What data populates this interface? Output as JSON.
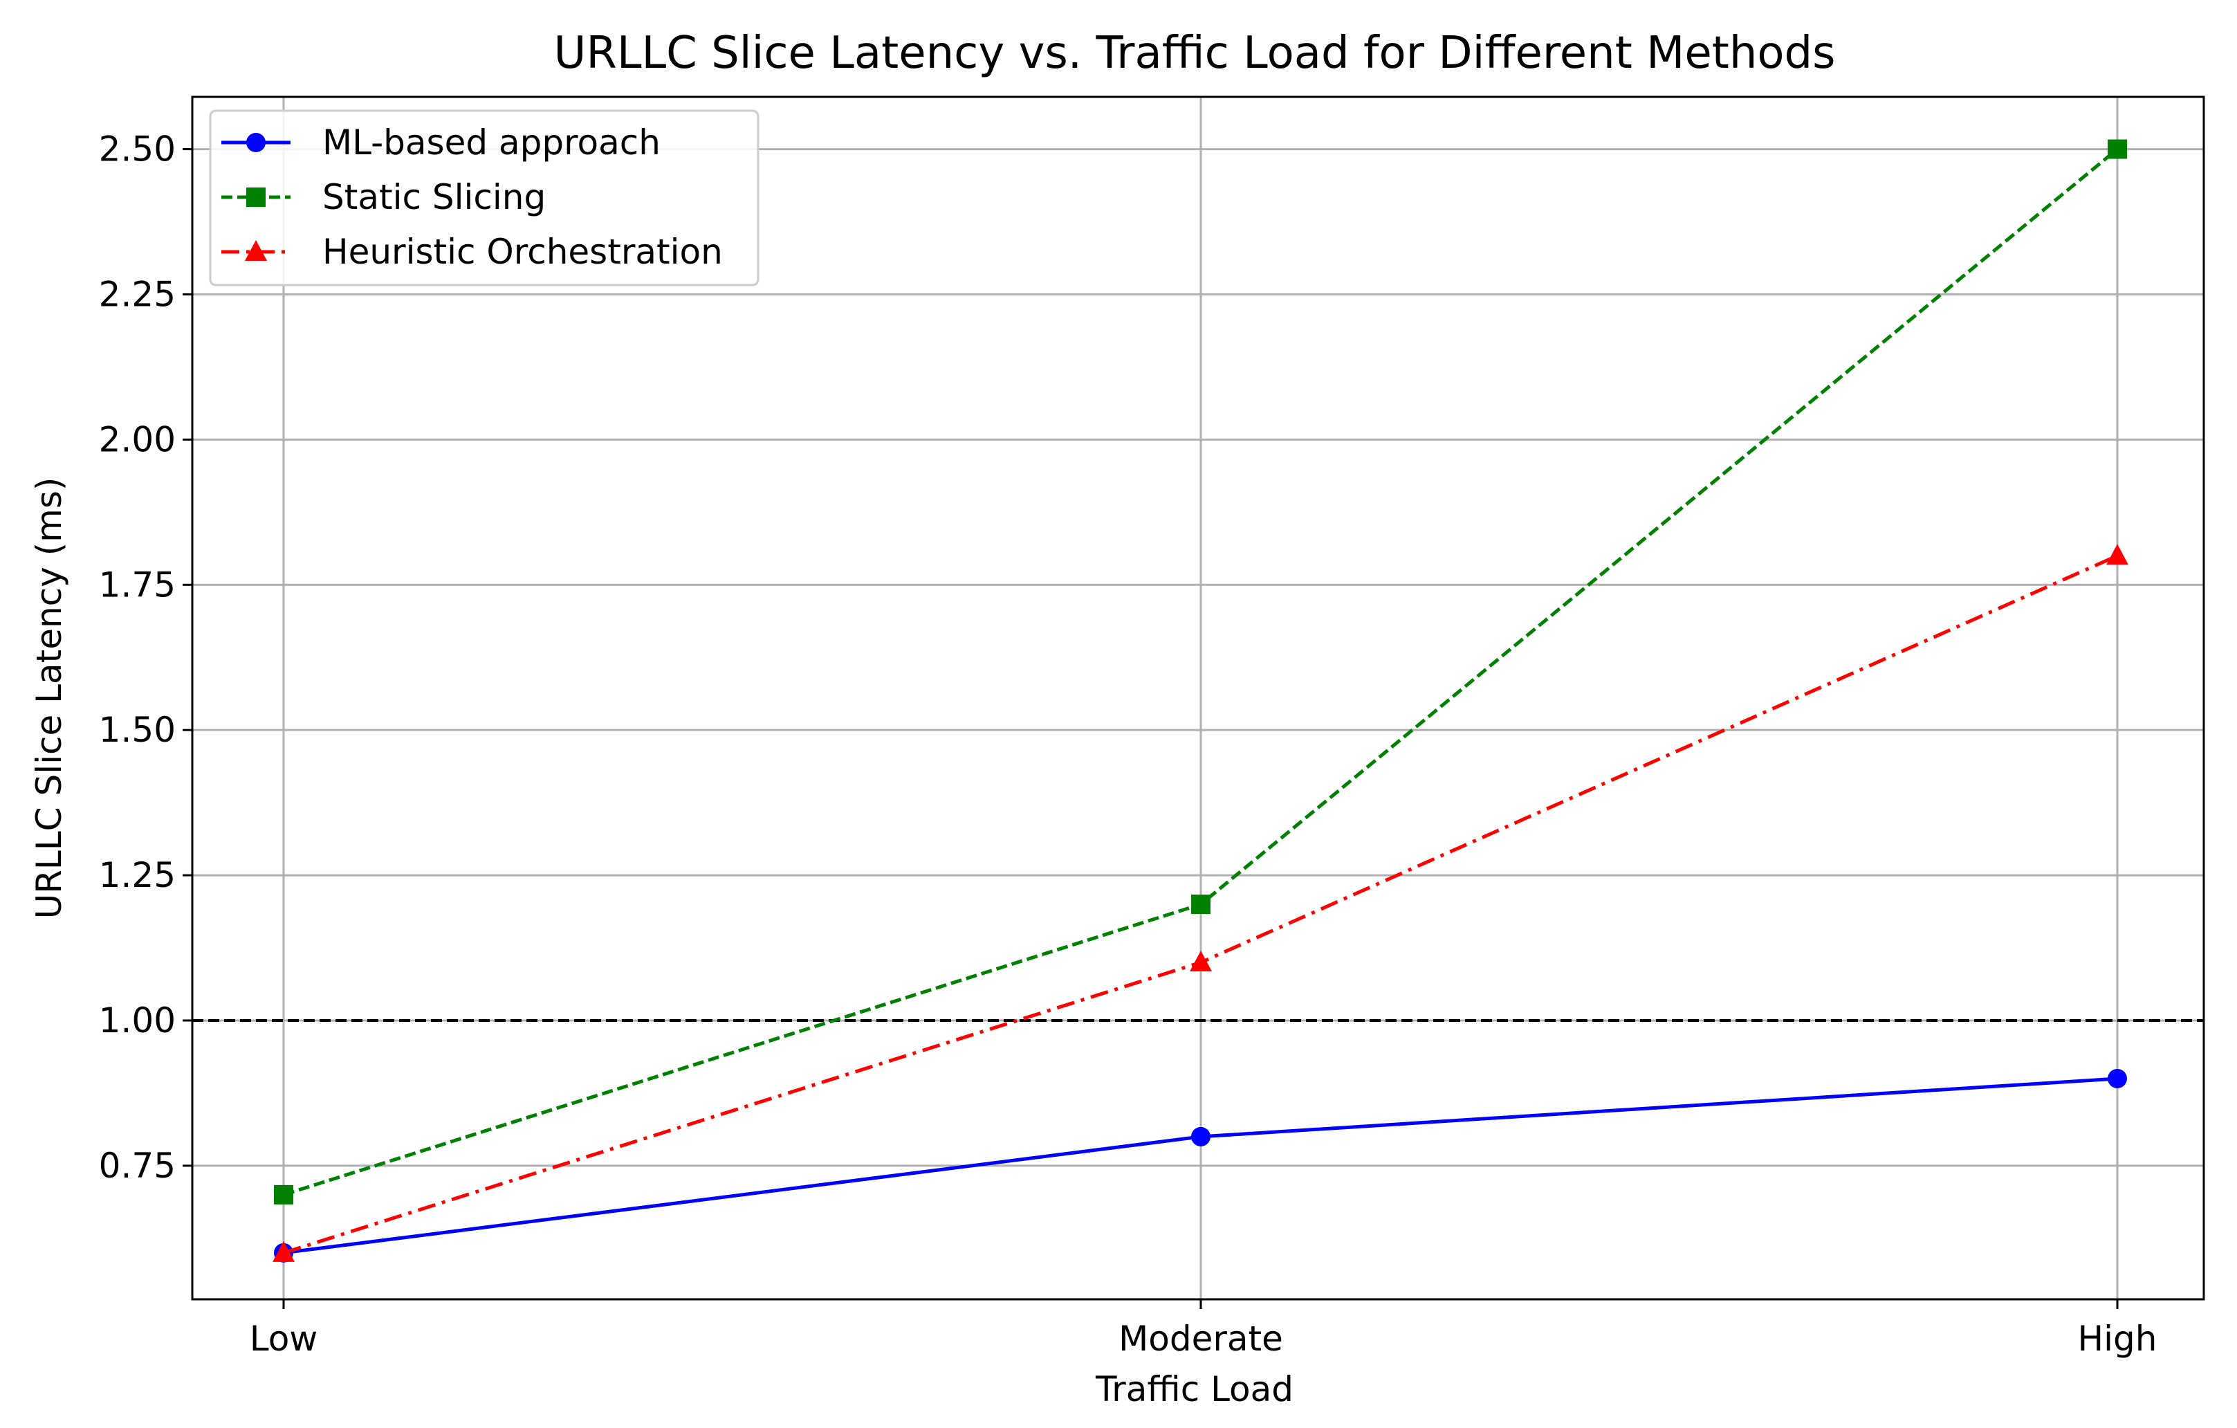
{
  "chart_data": {
    "type": "line",
    "title": "URLLC Slice Latency vs. Traffic Load for Different Methods",
    "xlabel": "Traffic Load",
    "ylabel": "URLLC Slice Latency (ms)",
    "categories": [
      "Low",
      "Moderate",
      "High"
    ],
    "ylim": [
      0.52,
      2.59
    ],
    "yticks": [
      "0.75",
      "1.00",
      "1.25",
      "1.50",
      "1.75",
      "2.00",
      "2.25",
      "2.50"
    ],
    "grid": true,
    "legend_position": "top-left",
    "reference_line": {
      "y": 1.0,
      "color": "#000000",
      "style": "dashed"
    },
    "series": [
      {
        "name": "ML-based approach",
        "values": [
          0.6,
          0.8,
          0.9
        ],
        "color": "#0000ff",
        "marker": "circle",
        "line_style": "solid"
      },
      {
        "name": "Static Slicing",
        "values": [
          0.7,
          1.2,
          2.5
        ],
        "color": "#008000",
        "marker": "square",
        "line_style": "dashed"
      },
      {
        "name": "Heuristic Orchestration",
        "values": [
          0.6,
          1.1,
          1.8
        ],
        "color": "#ff0000",
        "marker": "triangle",
        "line_style": "dashdot"
      }
    ]
  }
}
